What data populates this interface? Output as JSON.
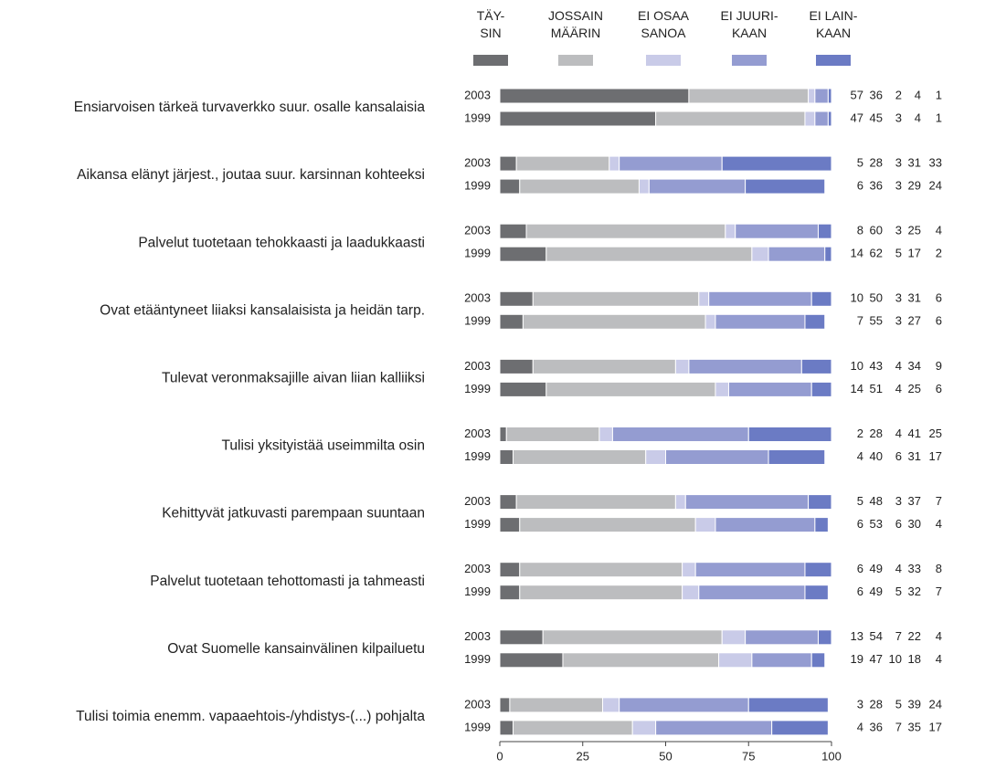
{
  "chart_data": {
    "type": "stacked-bar-horizontal",
    "series": [
      {
        "name": "TÄY-\nSIN",
        "color": "#6d6e71"
      },
      {
        "name": "JOSSAIN\nMÄÄRIN",
        "color": "#bcbdbf"
      },
      {
        "name": "EI OSAA\nSANOA",
        "color": "#c9cbe8"
      },
      {
        "name": "EI JUURI-\nKAAN",
        "color": "#949cd1"
      },
      {
        "name": "EI LAIN-\nKAAN",
        "color": "#6b7bc4"
      }
    ],
    "groups": [
      {
        "label": "Ensiarvoisen tärkeä turvaverkko suur. osalle kansalaisia",
        "rows": [
          {
            "year": "2003",
            "values": [
              57,
              36,
              2,
              4,
              1
            ]
          },
          {
            "year": "1999",
            "values": [
              47,
              45,
              3,
              4,
              1
            ]
          }
        ]
      },
      {
        "label": "Aikansa elänyt järjest., joutaa suur. karsinnan kohteeksi",
        "rows": [
          {
            "year": "2003",
            "values": [
              5,
              28,
              3,
              31,
              33
            ]
          },
          {
            "year": "1999",
            "values": [
              6,
              36,
              3,
              29,
              24
            ]
          }
        ]
      },
      {
        "label": "Palvelut tuotetaan tehokkaasti ja laadukkaasti",
        "rows": [
          {
            "year": "2003",
            "values": [
              8,
              60,
              3,
              25,
              4
            ]
          },
          {
            "year": "1999",
            "values": [
              14,
              62,
              5,
              17,
              2
            ]
          }
        ]
      },
      {
        "label": "Ovat etääntyneet liiaksi kansalaisista ja heidän tarp.",
        "rows": [
          {
            "year": "2003",
            "values": [
              10,
              50,
              3,
              31,
              6
            ]
          },
          {
            "year": "1999",
            "values": [
              7,
              55,
              3,
              27,
              6
            ]
          }
        ]
      },
      {
        "label": "Tulevat veronmaksajille aivan liian kalliiksi",
        "rows": [
          {
            "year": "2003",
            "values": [
              10,
              43,
              4,
              34,
              9
            ]
          },
          {
            "year": "1999",
            "values": [
              14,
              51,
              4,
              25,
              6
            ]
          }
        ]
      },
      {
        "label": "Tulisi yksityistää useimmilta osin",
        "rows": [
          {
            "year": "2003",
            "values": [
              2,
              28,
              4,
              41,
              25
            ]
          },
          {
            "year": "1999",
            "values": [
              4,
              40,
              6,
              31,
              17
            ]
          }
        ]
      },
      {
        "label": "Kehittyvät jatkuvasti parempaan suuntaan",
        "rows": [
          {
            "year": "2003",
            "values": [
              5,
              48,
              3,
              37,
              7
            ]
          },
          {
            "year": "1999",
            "values": [
              6,
              53,
              6,
              30,
              4
            ]
          }
        ]
      },
      {
        "label": "Palvelut tuotetaan tehottomasti ja tahmeasti",
        "rows": [
          {
            "year": "2003",
            "values": [
              6,
              49,
              4,
              33,
              8
            ]
          },
          {
            "year": "1999",
            "values": [
              6,
              49,
              5,
              32,
              7
            ]
          }
        ]
      },
      {
        "label": "Ovat Suomelle kansainvälinen kilpailuetu",
        "rows": [
          {
            "year": "2003",
            "values": [
              13,
              54,
              7,
              22,
              4
            ]
          },
          {
            "year": "1999",
            "values": [
              19,
              47,
              10,
              18,
              4
            ]
          }
        ]
      },
      {
        "label": "Tulisi toimia enemm. vapaaehtois-/yhdistys-(...) pohjalta",
        "rows": [
          {
            "year": "2003",
            "values": [
              3,
              28,
              5,
              39,
              24
            ]
          },
          {
            "year": "1999",
            "values": [
              4,
              36,
              7,
              35,
              17
            ]
          }
        ]
      }
    ],
    "xlim": [
      0,
      100
    ],
    "xticks": [
      0,
      25,
      50,
      75,
      100
    ]
  }
}
